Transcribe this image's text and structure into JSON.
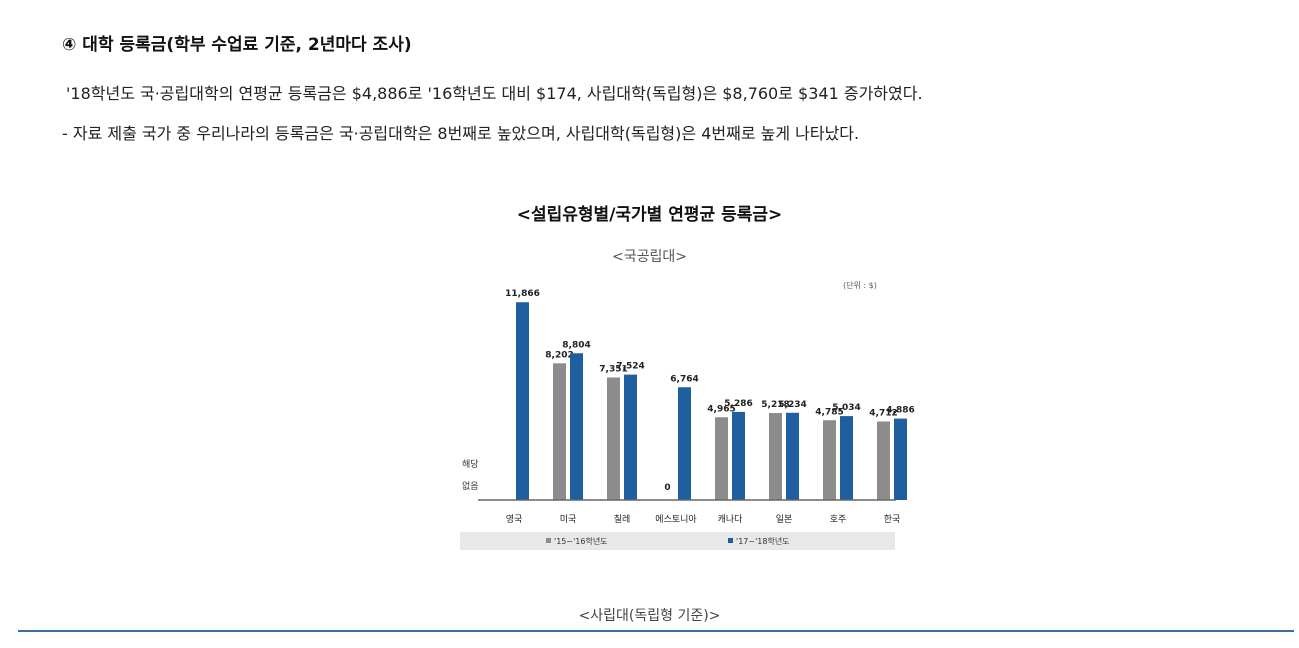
{
  "section_heading": "④ 대학 등록금(학부 수업료 기준, 2년마다 조사)",
  "paragraphs": [
    "'18학년도 국·공립대학의 연평균 등록금은 $4,886로 '16학년도 대비 $174, 사립대학(독립형)은 $8,760로 $341 증가하였다.",
    "- 자료 제출 국가 중 우리나라의 등록금은 국·공립대학은 8번째로 높았으며, 사립대학(독립형)은 4번째로 높게 나타났다."
  ],
  "chart_title": "<설립유형별/국가별 연평균 등록금>",
  "next_chart_subtitle": "<사립대(독립형 기준)>",
  "colors": {
    "series1": "#8c8c8c",
    "series2": "#1f5fa0",
    "legend_bg": "#e8e8e8",
    "rule": "#3d6fa3"
  },
  "chart_data": {
    "type": "bar",
    "subtitle": "<국공립대>",
    "unit_label": "(단위 : $)",
    "categories": [
      "영국",
      "미국",
      "칠레",
      "에스토니아",
      "캐나다",
      "일본",
      "호주",
      "한국"
    ],
    "series": [
      {
        "name": "'15~'16학년도",
        "values": [
          null,
          8202,
          7351,
          null,
          4965,
          5218,
          4785,
          4712
        ]
      },
      {
        "name": "'17~'18학년도",
        "values": [
          11866,
          8804,
          7524,
          6764,
          5286,
          5234,
          5034,
          4886
        ]
      }
    ],
    "value_labels": [
      [
        "",
        "8,202",
        "7,351",
        "0",
        "4,965",
        "5,218",
        "4,785",
        "4,712"
      ],
      [
        "11,866",
        "8,804",
        "7,524",
        "6,764",
        "5,286",
        "5,234",
        "5,034",
        "4,886"
      ]
    ],
    "na_note": [
      "해당",
      "없음"
    ],
    "ylim": [
      0,
      12000
    ],
    "grid": false,
    "legend_position": "bottom"
  }
}
